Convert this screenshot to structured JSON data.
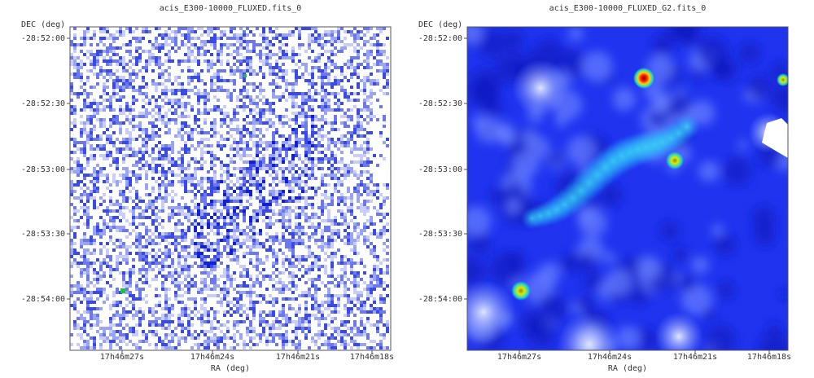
{
  "panels": [
    {
      "title": "acis_E300-10000_FLUXED.fits_0",
      "y_label": "DEC (deg)",
      "x_label": "RA (deg)",
      "y_ticks": [
        "-28:52:00",
        "-28:52:30",
        "-28:53:00",
        "-28:53:30",
        "-28:54:00"
      ],
      "x_ticks": [
        "17h46m27s",
        "17h46m24s",
        "17h46m21s",
        "17h46m18s"
      ]
    },
    {
      "title": "acis_E300-10000_FLUXED_G2.fits_0",
      "y_label": "DEC (deg)",
      "x_label": "RA (deg)",
      "y_ticks": [
        "-28:52:00",
        "-28:52:30",
        "-28:53:00",
        "-28:53:30",
        "-28:54:00"
      ],
      "x_ticks": [
        "17h46m27s",
        "17h46m24s",
        "17h46m21s",
        "17h46m18s"
      ]
    }
  ]
}
